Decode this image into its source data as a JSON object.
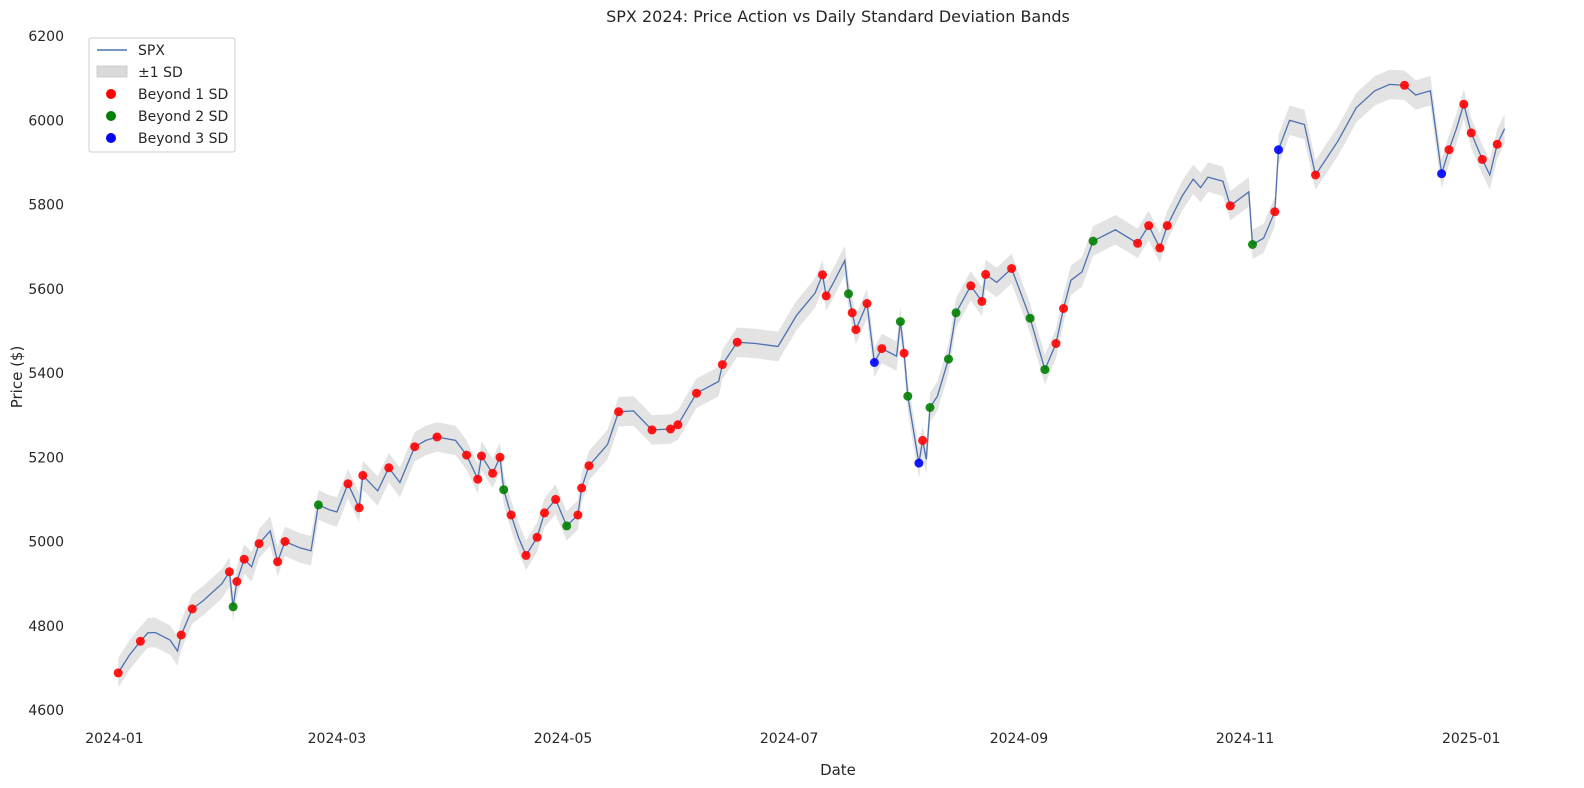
{
  "chart_data": {
    "type": "line",
    "title": "SPX 2024: Price Action vs Daily Standard Deviation Bands",
    "xlabel": "Date",
    "ylabel": "Price ($)",
    "xlim": [
      "2023-12-20",
      "2025-01-12"
    ],
    "ylim": [
      4600,
      6200
    ],
    "grid": false,
    "legend_position": "top-left",
    "x_ticks": [
      "2024-01-01",
      "2024-03-01",
      "2024-05-01",
      "2024-07-01",
      "2024-09-01",
      "2024-11-01",
      "2025-01-01"
    ],
    "x_tick_labels": [
      "2024-01",
      "2024-03",
      "2024-05",
      "2024-07",
      "2024-09",
      "2024-11",
      "2025-01"
    ],
    "y_ticks": [
      4600,
      4800,
      5000,
      5200,
      5400,
      5600,
      5800,
      6000,
      6200
    ],
    "colors": {
      "line": "#4c72b0",
      "band": "#d9d9d9",
      "sd1": "#ff0000",
      "sd2": "#008000",
      "sd3": "#0000ff"
    },
    "band_half_width": 35,
    "series": [
      {
        "name": "SPX",
        "type": "line",
        "points": [
          [
            "2024-01-02",
            4688
          ],
          [
            "2024-01-05",
            4730
          ],
          [
            "2024-01-08",
            4763
          ],
          [
            "2024-01-10",
            4783
          ],
          [
            "2024-01-12",
            4784
          ],
          [
            "2024-01-16",
            4766
          ],
          [
            "2024-01-18",
            4740
          ],
          [
            "2024-01-19",
            4778
          ],
          [
            "2024-01-22",
            4840
          ],
          [
            "2024-01-25",
            4860
          ],
          [
            "2024-01-30",
            4900
          ],
          [
            "2024-02-01",
            4928
          ],
          [
            "2024-02-02",
            4845
          ],
          [
            "2024-02-03",
            4905
          ],
          [
            "2024-02-05",
            4958
          ],
          [
            "2024-02-07",
            4940
          ],
          [
            "2024-02-09",
            4995
          ],
          [
            "2024-02-12",
            5025
          ],
          [
            "2024-02-14",
            4952
          ],
          [
            "2024-02-16",
            5000
          ],
          [
            "2024-02-20",
            4985
          ],
          [
            "2024-02-23",
            4978
          ],
          [
            "2024-02-25",
            5087
          ],
          [
            "2024-02-28",
            5075
          ],
          [
            "2024-03-01",
            5070
          ],
          [
            "2024-03-04",
            5137
          ],
          [
            "2024-03-07",
            5080
          ],
          [
            "2024-03-08",
            5157
          ],
          [
            "2024-03-12",
            5120
          ],
          [
            "2024-03-15",
            5175
          ],
          [
            "2024-03-18",
            5140
          ],
          [
            "2024-03-22",
            5225
          ],
          [
            "2024-03-25",
            5240
          ],
          [
            "2024-03-28",
            5248
          ],
          [
            "2024-04-02",
            5240
          ],
          [
            "2024-04-05",
            5205
          ],
          [
            "2024-04-08",
            5148
          ],
          [
            "2024-04-09",
            5203
          ],
          [
            "2024-04-12",
            5162
          ],
          [
            "2024-04-14",
            5200
          ],
          [
            "2024-04-15",
            5123
          ],
          [
            "2024-04-17",
            5063
          ],
          [
            "2024-04-19",
            5010
          ],
          [
            "2024-04-21",
            4967
          ],
          [
            "2024-04-24",
            5010
          ],
          [
            "2024-04-26",
            5068
          ],
          [
            "2024-04-29",
            5100
          ],
          [
            "2024-05-02",
            5037
          ],
          [
            "2024-05-05",
            5063
          ],
          [
            "2024-05-06",
            5127
          ],
          [
            "2024-05-08",
            5180
          ],
          [
            "2024-05-13",
            5230
          ],
          [
            "2024-05-16",
            5308
          ],
          [
            "2024-05-20",
            5310
          ],
          [
            "2024-05-25",
            5265
          ],
          [
            "2024-05-30",
            5267
          ],
          [
            "2024-06-01",
            5277
          ],
          [
            "2024-06-06",
            5352
          ],
          [
            "2024-06-12",
            5380
          ],
          [
            "2024-06-13",
            5420
          ],
          [
            "2024-06-17",
            5473
          ],
          [
            "2024-06-22",
            5470
          ],
          [
            "2024-06-28",
            5463
          ],
          [
            "2024-07-03",
            5537
          ],
          [
            "2024-07-08",
            5590
          ],
          [
            "2024-07-10",
            5633
          ],
          [
            "2024-07-11",
            5583
          ],
          [
            "2024-07-13",
            5615
          ],
          [
            "2024-07-16",
            5667
          ],
          [
            "2024-07-17",
            5588
          ],
          [
            "2024-07-18",
            5543
          ],
          [
            "2024-07-19",
            5503
          ],
          [
            "2024-07-22",
            5565
          ],
          [
            "2024-07-24",
            5425
          ],
          [
            "2024-07-26",
            5458
          ],
          [
            "2024-07-30",
            5440
          ],
          [
            "2024-07-31",
            5522
          ],
          [
            "2024-08-01",
            5447
          ],
          [
            "2024-08-02",
            5345
          ],
          [
            "2024-08-05",
            5186
          ],
          [
            "2024-08-06",
            5240
          ],
          [
            "2024-08-07",
            5195
          ],
          [
            "2024-08-08",
            5318
          ],
          [
            "2024-08-10",
            5345
          ],
          [
            "2024-08-13",
            5433
          ],
          [
            "2024-08-15",
            5543
          ],
          [
            "2024-08-19",
            5607
          ],
          [
            "2024-08-22",
            5570
          ],
          [
            "2024-08-23",
            5634
          ],
          [
            "2024-08-26",
            5615
          ],
          [
            "2024-08-30",
            5648
          ],
          [
            "2024-09-04",
            5530
          ],
          [
            "2024-09-08",
            5408
          ],
          [
            "2024-09-11",
            5470
          ],
          [
            "2024-09-13",
            5553
          ],
          [
            "2024-09-15",
            5620
          ],
          [
            "2024-09-18",
            5640
          ],
          [
            "2024-09-21",
            5713
          ],
          [
            "2024-09-27",
            5740
          ],
          [
            "2024-10-03",
            5708
          ],
          [
            "2024-10-06",
            5750
          ],
          [
            "2024-10-09",
            5697
          ],
          [
            "2024-10-11",
            5750
          ],
          [
            "2024-10-15",
            5820
          ],
          [
            "2024-10-18",
            5860
          ],
          [
            "2024-10-20",
            5840
          ],
          [
            "2024-10-22",
            5865
          ],
          [
            "2024-10-26",
            5855
          ],
          [
            "2024-10-28",
            5797
          ],
          [
            "2024-11-02",
            5830
          ],
          [
            "2024-11-03",
            5705
          ],
          [
            "2024-11-06",
            5720
          ],
          [
            "2024-11-09",
            5783
          ],
          [
            "2024-11-10",
            5930
          ],
          [
            "2024-11-13",
            6000
          ],
          [
            "2024-11-17",
            5990
          ],
          [
            "2024-11-20",
            5870
          ],
          [
            "2024-11-26",
            5950
          ],
          [
            "2024-12-01",
            6030
          ],
          [
            "2024-12-06",
            6070
          ],
          [
            "2024-12-10",
            6085
          ],
          [
            "2024-12-14",
            6083
          ],
          [
            "2024-12-17",
            6060
          ],
          [
            "2024-12-21",
            6070
          ],
          [
            "2024-12-24",
            5873
          ],
          [
            "2024-12-26",
            5930
          ],
          [
            "2024-12-28",
            5980
          ],
          [
            "2024-12-30",
            6038
          ],
          [
            "2025-01-01",
            5970
          ],
          [
            "2025-01-04",
            5907
          ],
          [
            "2025-01-06",
            5870
          ],
          [
            "2025-01-08",
            5943
          ],
          [
            "2025-01-10",
            5980
          ]
        ]
      },
      {
        "name": "±1 SD",
        "type": "band"
      },
      {
        "name": "Beyond 1 SD",
        "type": "scatter",
        "points": [
          [
            "2024-01-02",
            4688
          ],
          [
            "2024-01-08",
            4763
          ],
          [
            "2024-01-19",
            4778
          ],
          [
            "2024-01-22",
            4840
          ],
          [
            "2024-02-01",
            4928
          ],
          [
            "2024-02-03",
            4905
          ],
          [
            "2024-02-05",
            4958
          ],
          [
            "2024-02-09",
            4995
          ],
          [
            "2024-02-14",
            4952
          ],
          [
            "2024-02-16",
            5000
          ],
          [
            "2024-03-04",
            5137
          ],
          [
            "2024-03-07",
            5080
          ],
          [
            "2024-03-08",
            5157
          ],
          [
            "2024-03-15",
            5175
          ],
          [
            "2024-03-22",
            5225
          ],
          [
            "2024-03-28",
            5248
          ],
          [
            "2024-04-05",
            5205
          ],
          [
            "2024-04-08",
            5148
          ],
          [
            "2024-04-09",
            5203
          ],
          [
            "2024-04-12",
            5162
          ],
          [
            "2024-04-14",
            5200
          ],
          [
            "2024-04-17",
            5063
          ],
          [
            "2024-04-21",
            4967
          ],
          [
            "2024-04-24",
            5010
          ],
          [
            "2024-04-26",
            5068
          ],
          [
            "2024-04-29",
            5100
          ],
          [
            "2024-05-05",
            5063
          ],
          [
            "2024-05-06",
            5127
          ],
          [
            "2024-05-08",
            5180
          ],
          [
            "2024-05-16",
            5308
          ],
          [
            "2024-05-25",
            5265
          ],
          [
            "2024-05-30",
            5267
          ],
          [
            "2024-06-01",
            5277
          ],
          [
            "2024-06-06",
            5352
          ],
          [
            "2024-06-13",
            5420
          ],
          [
            "2024-06-17",
            5473
          ],
          [
            "2024-07-10",
            5633
          ],
          [
            "2024-07-11",
            5583
          ],
          [
            "2024-07-18",
            5543
          ],
          [
            "2024-07-19",
            5503
          ],
          [
            "2024-07-22",
            5565
          ],
          [
            "2024-07-26",
            5458
          ],
          [
            "2024-08-01",
            5447
          ],
          [
            "2024-08-06",
            5240
          ],
          [
            "2024-08-19",
            5607
          ],
          [
            "2024-08-22",
            5570
          ],
          [
            "2024-08-23",
            5634
          ],
          [
            "2024-08-30",
            5648
          ],
          [
            "2024-09-11",
            5470
          ],
          [
            "2024-09-13",
            5553
          ],
          [
            "2024-10-03",
            5708
          ],
          [
            "2024-10-06",
            5750
          ],
          [
            "2024-10-09",
            5697
          ],
          [
            "2024-10-11",
            5750
          ],
          [
            "2024-10-28",
            5797
          ],
          [
            "2024-11-09",
            5783
          ],
          [
            "2024-11-20",
            5870
          ],
          [
            "2024-12-14",
            6083
          ],
          [
            "2024-12-26",
            5930
          ],
          [
            "2024-12-30",
            6038
          ],
          [
            "2025-01-01",
            5970
          ],
          [
            "2025-01-04",
            5907
          ],
          [
            "2025-01-08",
            5943
          ]
        ]
      },
      {
        "name": "Beyond 2 SD",
        "type": "scatter",
        "points": [
          [
            "2024-02-02",
            4845
          ],
          [
            "2024-02-25",
            5087
          ],
          [
            "2024-04-15",
            5123
          ],
          [
            "2024-05-02",
            5037
          ],
          [
            "2024-07-17",
            5588
          ],
          [
            "2024-07-31",
            5522
          ],
          [
            "2024-08-02",
            5345
          ],
          [
            "2024-08-08",
            5318
          ],
          [
            "2024-08-13",
            5433
          ],
          [
            "2024-08-15",
            5543
          ],
          [
            "2024-09-04",
            5530
          ],
          [
            "2024-09-08",
            5408
          ],
          [
            "2024-09-21",
            5713
          ],
          [
            "2024-11-03",
            5705
          ]
        ]
      },
      {
        "name": "Beyond 3 SD",
        "type": "scatter",
        "points": [
          [
            "2024-07-24",
            5425
          ],
          [
            "2024-08-05",
            5186
          ],
          [
            "2024-11-10",
            5930
          ],
          [
            "2024-12-24",
            5873
          ]
        ]
      }
    ]
  }
}
